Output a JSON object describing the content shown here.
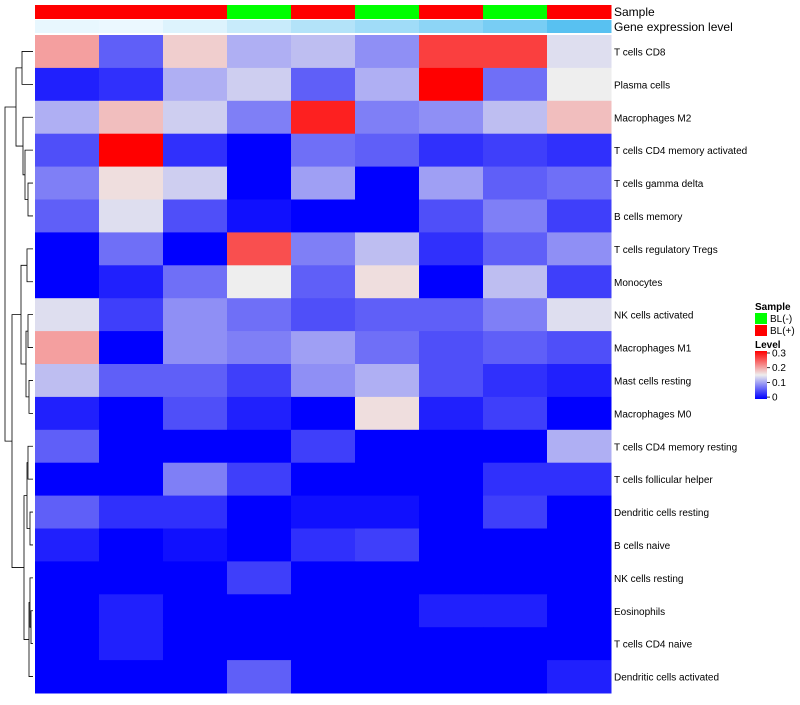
{
  "chart_data": {
    "type": "heatmap",
    "annotations": [
      {
        "name": "Sample"
      },
      {
        "name": "Gene expression level"
      }
    ],
    "sample_groups": [
      "BL(+)",
      "BL(+)",
      "BL(+)",
      "BL(-)",
      "BL(+)",
      "BL(-)",
      "BL(+)",
      "BL(-)",
      "BL(+)"
    ],
    "expression_levels": [
      0.05,
      0.03,
      0.12,
      0.25,
      0.38,
      0.5,
      0.62,
      0.75,
      0.95
    ],
    "rows": [
      "T cells CD8",
      "Plasma cells",
      "Macrophages M2",
      "T cells CD4 memory activated",
      "T cells gamma delta",
      "B cells memory",
      "T cells regulatory  Tregs",
      "Monocytes",
      "NK cells activated",
      "Macrophages M1",
      "Mast cells resting",
      "Macrophages M0",
      "T cells CD4 memory resting",
      "T cells follicular helper",
      "Dendritic cells resting",
      "B cells naive",
      "NK cells resting",
      "Eosinophils",
      "T cells CD4 naive",
      "Dendritic cells activated"
    ],
    "values": [
      [
        0.2,
        0.06,
        0.17,
        0.11,
        0.12,
        0.09,
        0.26,
        0.26,
        0.14
      ],
      [
        0.02,
        0.03,
        0.11,
        0.13,
        0.06,
        0.11,
        0.3,
        0.07,
        0.15
      ],
      [
        0.11,
        0.18,
        0.13,
        0.08,
        0.28,
        0.08,
        0.09,
        0.12,
        0.18
      ],
      [
        0.05,
        0.3,
        0.03,
        0.0,
        0.07,
        0.06,
        0.03,
        0.04,
        0.03
      ],
      [
        0.08,
        0.16,
        0.13,
        0.0,
        0.1,
        0.0,
        0.1,
        0.06,
        0.07
      ],
      [
        0.06,
        0.14,
        0.05,
        0.01,
        0.0,
        0.0,
        0.05,
        0.08,
        0.04
      ],
      [
        0.0,
        0.07,
        0.0,
        0.25,
        0.08,
        0.12,
        0.03,
        0.06,
        0.09
      ],
      [
        0.0,
        0.02,
        0.07,
        0.15,
        0.06,
        0.16,
        0.0,
        0.12,
        0.04
      ],
      [
        0.14,
        0.04,
        0.09,
        0.07,
        0.05,
        0.06,
        0.06,
        0.08,
        0.14
      ],
      [
        0.2,
        0.0,
        0.09,
        0.08,
        0.1,
        0.07,
        0.05,
        0.06,
        0.05
      ],
      [
        0.12,
        0.06,
        0.06,
        0.04,
        0.09,
        0.11,
        0.05,
        0.03,
        0.02
      ],
      [
        0.02,
        0.0,
        0.05,
        0.02,
        0.0,
        0.16,
        0.02,
        0.04,
        0.0
      ],
      [
        0.06,
        0.0,
        0.0,
        0.0,
        0.04,
        0.0,
        0.0,
        0.0,
        0.11
      ],
      [
        0.0,
        0.0,
        0.08,
        0.04,
        0.0,
        0.0,
        0.0,
        0.03,
        0.03
      ],
      [
        0.06,
        0.03,
        0.03,
        0.0,
        0.01,
        0.01,
        0.0,
        0.04,
        0.0
      ],
      [
        0.02,
        0.0,
        0.01,
        0.0,
        0.03,
        0.04,
        0.0,
        0.0,
        0.0
      ],
      [
        0.0,
        0.0,
        0.0,
        0.04,
        0.0,
        0.0,
        0.0,
        0.0,
        0.0
      ],
      [
        0.0,
        0.02,
        0.0,
        0.0,
        0.0,
        0.0,
        0.02,
        0.02,
        0.0
      ],
      [
        0.0,
        0.02,
        0.0,
        0.0,
        0.0,
        0.0,
        0.0,
        0.0,
        0.0
      ],
      [
        0.0,
        0.0,
        0.0,
        0.06,
        0.0,
        0.0,
        0.0,
        0.0,
        0.02
      ]
    ],
    "scale": {
      "min": 0,
      "max": 0.3,
      "colors": [
        "#0000FF",
        "#EEEEEE",
        "#FF0000"
      ],
      "ticks": [
        "0.3",
        "0.2",
        "0.1",
        "0"
      ]
    },
    "legend": {
      "sample_title": "Sample",
      "sample_entries": [
        {
          "label": "BL(-)",
          "color": "#00FF00"
        },
        {
          "label": "BL(+)",
          "color": "#FF0000"
        }
      ],
      "level_title": "Level",
      "placement": "right"
    },
    "dendrogram": "rows"
  }
}
